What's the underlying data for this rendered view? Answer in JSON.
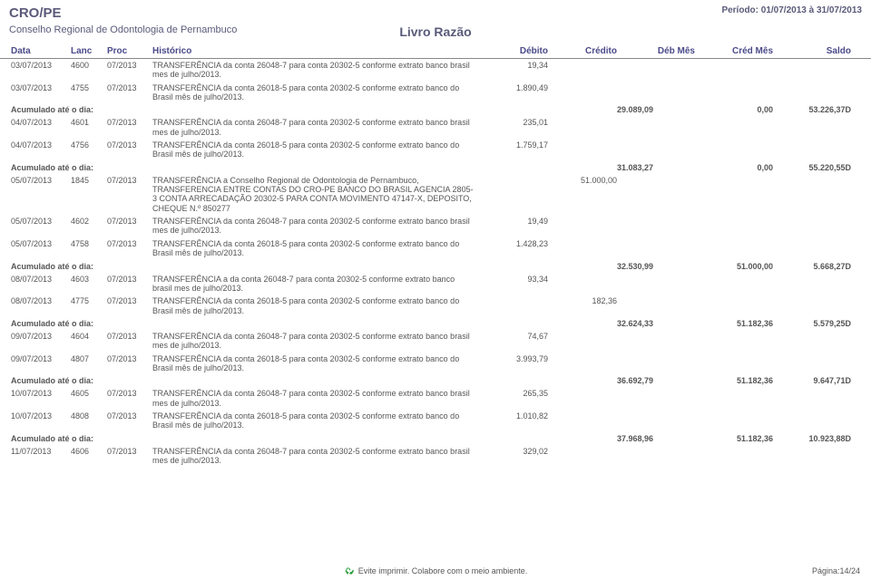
{
  "header": {
    "org": "CRO/PE",
    "sub": "Conselho Regional de Odontologia de Pernambuco",
    "period": "Período: 01/07/2013 à 31/07/2013",
    "title": "Livro Razão"
  },
  "columns": {
    "data": "Data",
    "lanc": "Lanc",
    "proc": "Proc",
    "hist": "Histórico",
    "deb": "Débito",
    "cred": "Crédito",
    "debmes": "Déb Mês",
    "credmes": "Créd Mês",
    "saldo": "Saldo"
  },
  "acum_label": "Acumulado até o dia:",
  "rows": [
    {
      "data": "03/07/2013",
      "lanc": "4600",
      "proc": "07/2013",
      "hist": "TRANSFERÊNCIA da conta 26048-7 para conta 20302-5 conforme extrato banco brasil mes de julho/2013.",
      "deb": "19,34",
      "cred": ""
    },
    {
      "data": "03/07/2013",
      "lanc": "4755",
      "proc": "07/2013",
      "hist": "TRANSFERÊNCIA da  conta 26018-5 para conta 20302-5 conforme extrato banco do Brasil mês de julho/2013.",
      "deb": "1.890,49",
      "cred": ""
    }
  ],
  "acum": [
    {
      "debmes": "29.089,09",
      "credmes": "0,00",
      "saldo": "53.226,37D"
    }
  ],
  "rows2": [
    {
      "data": "04/07/2013",
      "lanc": "4601",
      "proc": "07/2013",
      "hist": "TRANSFERÊNCIA da conta 26048-7 para conta 20302-5 conforme extrato banco brasil mes de julho/2013.",
      "deb": "235,01",
      "cred": ""
    },
    {
      "data": "04/07/2013",
      "lanc": "4756",
      "proc": "07/2013",
      "hist": "TRANSFERÊNCIA da  conta 26018-5 para conta 20302-5 conforme extrato banco do Brasil mês de julho/2013.",
      "deb": "1.759,17",
      "cred": ""
    }
  ],
  "acum2": {
    "debmes": "31.083,27",
    "credmes": "0,00",
    "saldo": "55.220,55D"
  },
  "rows3": [
    {
      "data": "05/07/2013",
      "lanc": "1845",
      "proc": "07/2013",
      "hist": "TRANSFERÊNCIA a Conselho Regional de Odontologia de Pernambuco, TRANSFERENCIA ENTRE CONTAS DO CRO-PE BANCO DO BRASIL AGENCIA 2805-3 CONTA ARRECADAÇÃO 20302-5 PARA CONTA MOVIMENTO 47147-X, DEPOSITO, CHEQUE N.º 850277",
      "deb": "",
      "cred": "51.000,00"
    },
    {
      "data": "05/07/2013",
      "lanc": "4602",
      "proc": "07/2013",
      "hist": "TRANSFERÊNCIA da conta 26048-7 para conta 20302-5 conforme extrato banco brasil mes de julho/2013.",
      "deb": "19,49",
      "cred": ""
    },
    {
      "data": "05/07/2013",
      "lanc": "4758",
      "proc": "07/2013",
      "hist": "TRANSFERÊNCIA da  conta 26018-5 para conta 20302-5 conforme extrato banco do Brasil mês de julho/2013.",
      "deb": "1.428,23",
      "cred": ""
    }
  ],
  "acum3": {
    "debmes": "32.530,99",
    "credmes": "51.000,00",
    "saldo": "5.668,27D"
  },
  "rows4": [
    {
      "data": "08/07/2013",
      "lanc": "4603",
      "proc": "07/2013",
      "hist": "TRANSFERÊNCIA a da conta 26048-7 para conta 20302-5 conforme extrato banco brasil mes de julho/2013.",
      "deb": "93,34",
      "cred": ""
    },
    {
      "data": "08/07/2013",
      "lanc": "4775",
      "proc": "07/2013",
      "hist": "TRANSFERÊNCIA da  conta 26018-5 para conta 20302-5 conforme extrato banco do Brasil mês de julho/2013.",
      "deb": "",
      "cred": "182,36"
    }
  ],
  "acum4": {
    "debmes": "32.624,33",
    "credmes": "51.182,36",
    "saldo": "5.579,25D"
  },
  "rows5": [
    {
      "data": "09/07/2013",
      "lanc": "4604",
      "proc": "07/2013",
      "hist": "TRANSFERÊNCIA da conta 26048-7 para conta 20302-5 conforme extrato banco brasil mes de julho/2013.",
      "deb": "74,67",
      "cred": ""
    },
    {
      "data": "09/07/2013",
      "lanc": "4807",
      "proc": "07/2013",
      "hist": "TRANSFERÊNCIA da  conta 26018-5 para conta 20302-5 conforme extrato banco do Brasil mês de julho/2013.",
      "deb": "3.993,79",
      "cred": ""
    }
  ],
  "acum5": {
    "debmes": "36.692,79",
    "credmes": "51.182,36",
    "saldo": "9.647,71D"
  },
  "rows6": [
    {
      "data": "10/07/2013",
      "lanc": "4605",
      "proc": "07/2013",
      "hist": "TRANSFERÊNCIA da conta 26048-7 para conta 20302-5 conforme extrato banco brasil mes de julho/2013.",
      "deb": "265,35",
      "cred": ""
    },
    {
      "data": "10/07/2013",
      "lanc": "4808",
      "proc": "07/2013",
      "hist": " TRANSFERÊNCIA da  conta 26018-5 para conta 20302-5 conforme extrato banco do Brasil mês de julho/2013.",
      "deb": "1.010,82",
      "cred": ""
    }
  ],
  "acum6": {
    "debmes": "37.968,96",
    "credmes": "51.182,36",
    "saldo": "10.923,88D"
  },
  "rows7": [
    {
      "data": "11/07/2013",
      "lanc": "4606",
      "proc": "07/2013",
      "hist": "TRANSFERÊNCIA da conta 26048-7 para conta 20302-5 conforme extrato banco brasil mes de julho/2013.",
      "deb": "329,02",
      "cred": ""
    }
  ],
  "footer": {
    "msg": "Evite imprimir. Colabore com o meio ambiente.",
    "page": "Página:14/24"
  }
}
